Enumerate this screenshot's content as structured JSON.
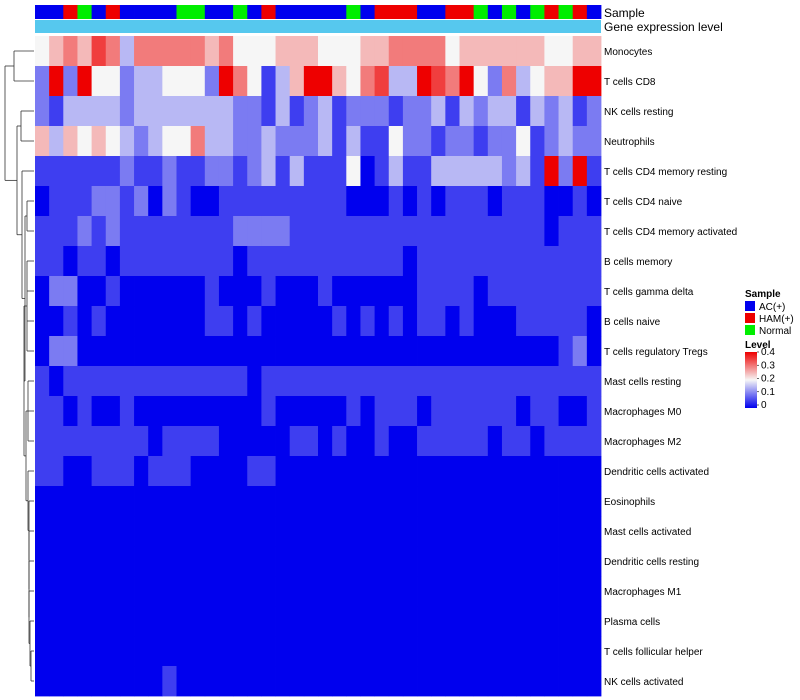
{
  "chart_data": {
    "type": "heatmap",
    "annotation_rows": [
      "Sample",
      "Gene expression level"
    ],
    "legend": {
      "sample": {
        "title": "Sample",
        "items": [
          {
            "label": "AC(+)",
            "color": "#0000ee"
          },
          {
            "label": "HAM(+)",
            "color": "#ee0000"
          },
          {
            "label": "Normal",
            "color": "#00ee00"
          }
        ]
      },
      "level": {
        "title": "Level",
        "ticks": [
          "0.4",
          "0.3",
          "0.2",
          "0.1",
          "0"
        ],
        "range": [
          0,
          0.4
        ]
      }
    },
    "sample_groups": "AAHNAHAAAANNAANAHAAAAANAHHHAAHHNANANHNHA",
    "cell_types": [
      "Monocytes",
      "T cells CD8",
      "NK cells resting",
      "Neutrophils",
      "T cells CD4 memory resting",
      "T cells CD4 naive",
      "T cells CD4 memory activated",
      "B cells memory",
      "T cells gamma delta",
      "B cells naive",
      "T cells regulatory  Tregs",
      "Mast cells resting",
      "Macrophages M0",
      "Macrophages M2",
      "Dendritic cells activated",
      "Eosinophils",
      "Mast cells activated",
      "Dendritic cells resting",
      "Macrophages M1",
      "Plasma cells",
      "T cells follicular helper",
      "NK cells activated"
    ],
    "values": [
      "4565763666665644455544455666645555554455",
      "2828442334442864135885467338768426345588",
      "2133332333333322131231222122313233132312",
      "5354543234463322322231311422122122412322",
      "1111112112112212313111401311333332318281",
      "0111221202100111111111000101011101110010",
      "1112121111111122221111111111111111110111",
      "1101101111111101111111111101111111111111",
      "0220010000001000100010000001111011111111",
      "0010100000001101000001010101101000111110",
      "0220000000000000000000000000000000000120",
      "1011111111111110111111111111111111111111",
      "1101001000000000100000101110111111011001",
      "1111111101111000001101001001111101101111",
      "1100111011100001100000000000000000000000",
      "0000000000000000000000000000000000000000",
      "0000000000000000000000000000000000000000",
      "0000000000000000000000000000000000000000",
      "0000000000000000000000000000000000000000",
      "0000000000000000000000000000000000000000",
      "0000000000000000000000000000000000000000",
      "0000000001000000000000000000000000000000"
    ],
    "value_scale": "digit d encodes level d/20 (0 = 0, 8 = 0.4)"
  }
}
